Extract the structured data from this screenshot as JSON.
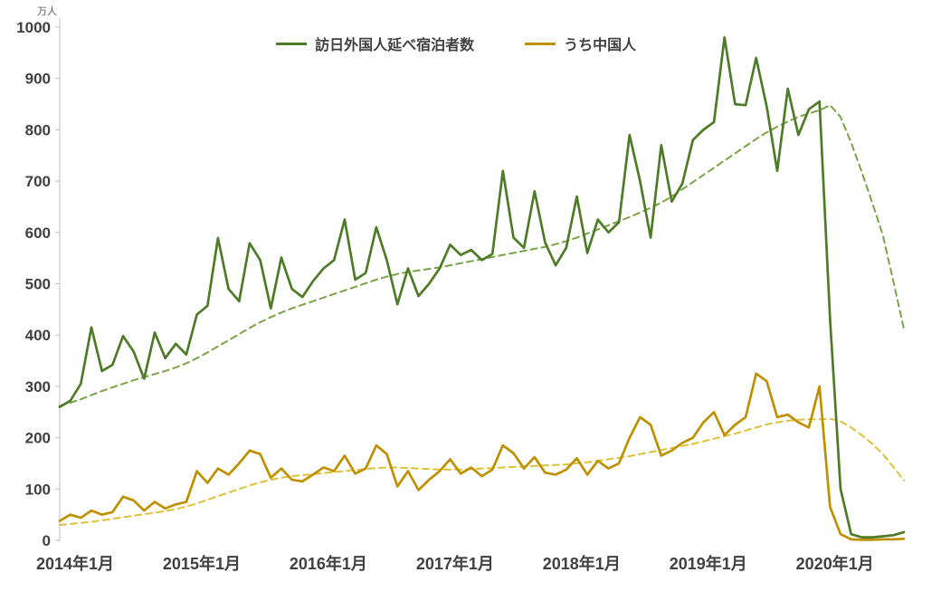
{
  "chart_data": {
    "type": "line",
    "unit_label": "万人",
    "ylim": [
      0,
      1000
    ],
    "y_ticks": [
      0,
      100,
      200,
      300,
      400,
      500,
      600,
      700,
      800,
      900,
      1000
    ],
    "x_tick_labels": [
      "2014年1月",
      "2015年1月",
      "2016年1月",
      "2017年1月",
      "2018年1月",
      "2019年1月",
      "2020年1月"
    ],
    "x_tick_month_indices": [
      0,
      12,
      24,
      36,
      48,
      60,
      72
    ],
    "legend": [
      {
        "label": "訪日外国人延べ宿泊者数",
        "color": "#4e7b27"
      },
      {
        "label": "うち中国人",
        "color": "#bf9000"
      }
    ],
    "series": [
      {
        "key": "foreign-guests-trend",
        "name": "訪日外国人延べ宿泊者数(trend)",
        "style": "dashed",
        "color": "#7aa348",
        "values": [
          262,
          268,
          275,
          283,
          291,
          298,
          305,
          312,
          318,
          324,
          330,
          337,
          345,
          355,
          366,
          378,
          390,
          402,
          414,
          425,
          435,
          444,
          452,
          459,
          466,
          473,
          480,
          487,
          494,
          501,
          508,
          514,
          519,
          523,
          526,
          529,
          532,
          536,
          540,
          544,
          548,
          552,
          556,
          560,
          564,
          568,
          572,
          577,
          583,
          590,
          598,
          606,
          614,
          622,
          630,
          639,
          648,
          658,
          670,
          684,
          698,
          712,
          726,
          740,
          754,
          768,
          782,
          795,
          806,
          816,
          825,
          832,
          838,
          848,
          825,
          775,
          718,
          658,
          595,
          505,
          412
        ]
      },
      {
        "key": "chinese-guests-trend",
        "name": "うち中国人(trend)",
        "style": "dashed",
        "color": "#dcc23c",
        "values": [
          30,
          32,
          34,
          36,
          39,
          42,
          45,
          48,
          51,
          54,
          57,
          61,
          66,
          72,
          79,
          86,
          93,
          100,
          107,
          113,
          118,
          122,
          125,
          127,
          129,
          131,
          133,
          135,
          137,
          139,
          141,
          142,
          142,
          141,
          140,
          139,
          138,
          138,
          138,
          139,
          140,
          141,
          142,
          143,
          144,
          145,
          146,
          147,
          148,
          150,
          152,
          155,
          158,
          161,
          164,
          168,
          172,
          176,
          180,
          184,
          188,
          193,
          198,
          203,
          208,
          214,
          220,
          226,
          230,
          233,
          235,
          236,
          236,
          237,
          232,
          220,
          205,
          188,
          168,
          143,
          117
        ]
      },
      {
        "key": "foreign-guests",
        "name": "訪日外国人延べ宿泊者数",
        "style": "solid",
        "color": "#4e7b27",
        "values": [
          260,
          272,
          305,
          415,
          330,
          342,
          398,
          368,
          315,
          405,
          355,
          383,
          362,
          440,
          457,
          589,
          490,
          466,
          579,
          546,
          452,
          551,
          490,
          474,
          505,
          530,
          546,
          625,
          508,
          521,
          610,
          546,
          460,
          530,
          476,
          500,
          530,
          576,
          556,
          566,
          546,
          558,
          720,
          590,
          570,
          680,
          580,
          536,
          570,
          670,
          560,
          625,
          600,
          620,
          790,
          700,
          590,
          770,
          660,
          695,
          780,
          800,
          815,
          980,
          850,
          848,
          940,
          845,
          720,
          880,
          790,
          840,
          855,
          430,
          100,
          12,
          6,
          6,
          8,
          10,
          16
        ]
      },
      {
        "key": "chinese-guests",
        "name": "うち中国人",
        "style": "solid",
        "color": "#bf9000",
        "values": [
          38,
          50,
          44,
          58,
          50,
          55,
          85,
          78,
          58,
          75,
          62,
          70,
          75,
          135,
          112,
          140,
          128,
          150,
          175,
          168,
          122,
          140,
          118,
          115,
          128,
          142,
          135,
          165,
          130,
          140,
          185,
          168,
          105,
          135,
          98,
          118,
          135,
          158,
          130,
          142,
          125,
          138,
          185,
          170,
          140,
          162,
          132,
          128,
          138,
          160,
          128,
          155,
          140,
          150,
          200,
          240,
          225,
          165,
          175,
          190,
          200,
          230,
          250,
          205,
          225,
          240,
          325,
          310,
          240,
          245,
          230,
          220,
          300,
          65,
          12,
          2,
          1,
          1,
          2,
          2,
          3
        ]
      }
    ]
  }
}
